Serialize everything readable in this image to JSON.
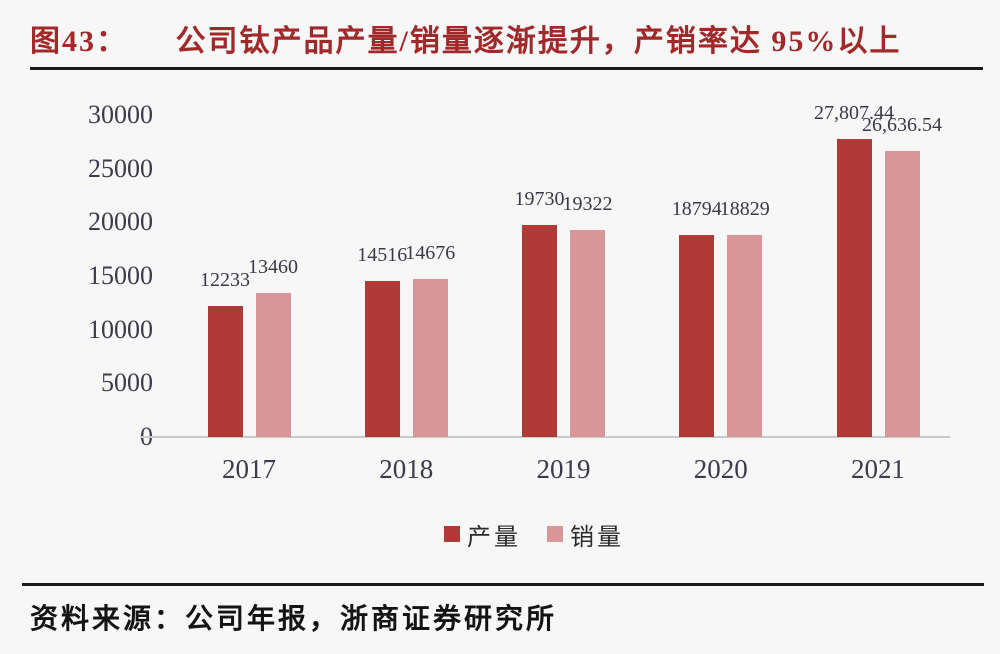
{
  "title": {
    "label": "图43：",
    "text": "公司钛产品产量/销量逐渐提升，产销率达 95%以上"
  },
  "source": {
    "text": "资料来源：公司年报，浙商证券研究所"
  },
  "colors": {
    "title_red": "#a2292a",
    "production_bar": "#b03a37",
    "sales_bar": "#d99698",
    "axis_text": "#3b3b4b",
    "value_text": "#3a3a46",
    "divider": "#1b1b1b",
    "baseline": "#c9c9c9",
    "background": "#f7f7f8"
  },
  "chart_data": {
    "type": "bar",
    "title": "",
    "xlabel": "",
    "ylabel": "",
    "categories": [
      "2017",
      "2018",
      "2019",
      "2020",
      "2021"
    ],
    "series": [
      {
        "key": "production",
        "name": "产量",
        "color": "#b03a37",
        "values": [
          12233,
          14516,
          19730,
          18794,
          27807.44
        ],
        "labels": [
          "12233",
          "14516",
          "19730",
          "18794",
          "27,807.44"
        ]
      },
      {
        "key": "sales",
        "name": "销量",
        "color": "#d99698",
        "values": [
          13460,
          14676,
          19322,
          18829,
          26636.54
        ],
        "labels": [
          "13460",
          "14676",
          "19322",
          "18829",
          "26,636.54"
        ]
      }
    ],
    "ylim": [
      0,
      30000
    ],
    "yticks": [
      0,
      5000,
      10000,
      15000,
      20000,
      25000,
      30000
    ],
    "grid": false,
    "legend_position": "bottom"
  }
}
